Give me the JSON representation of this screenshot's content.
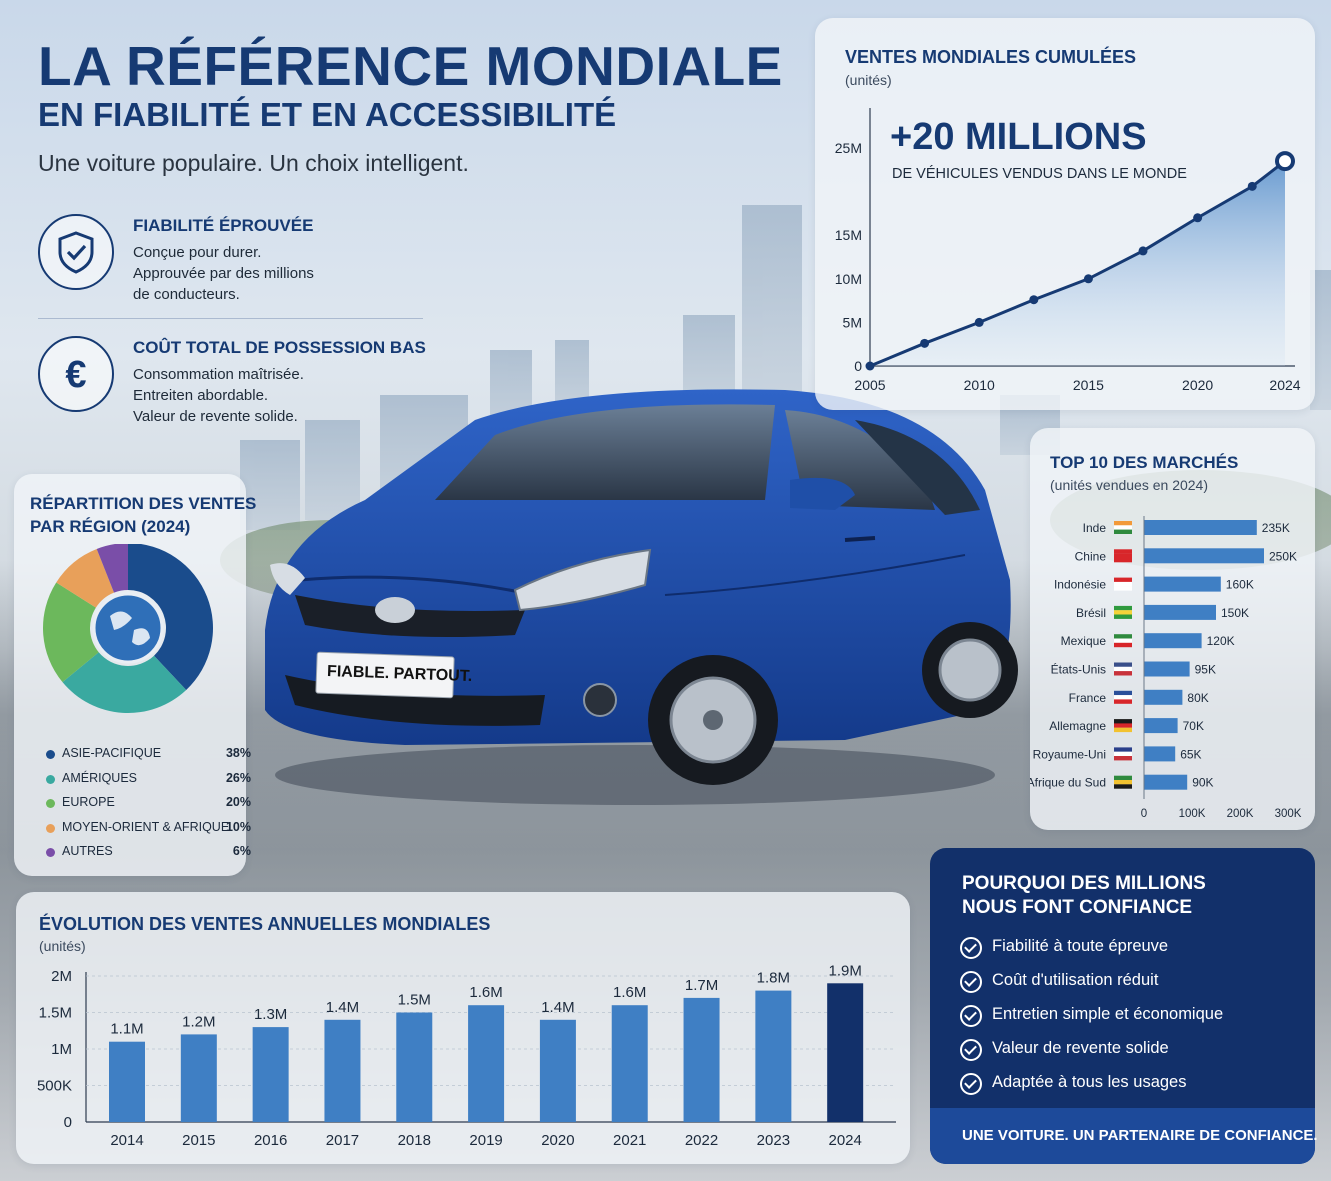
{
  "hero": {
    "title": "LA RÉFÉRENCE MONDIALE",
    "subtitle": "EN FIABILITÉ ET EN ACCESSIBILITÉ",
    "tagline": "Une voiture populaire. Un choix intelligent."
  },
  "features": [
    {
      "icon": "shield-check-icon",
      "title": "FIABILITÉ ÉPROUVÉE",
      "lines": [
        "Conçue pour durer.",
        "Approuvée par des millions",
        "de conducteurs."
      ]
    },
    {
      "icon": "euro-icon",
      "title": "COÛT TOTAL DE POSSESSION BAS",
      "lines": [
        "Consommation maîtrisée.",
        "Entreiten abordable.",
        "Valeur de revente solide."
      ]
    }
  ],
  "car_badge": "FIABLE. PARTOUT.",
  "colors": {
    "navy": "#163a73",
    "blue": "#3f7fc4",
    "dark_bar": "#12306a",
    "asia": "#1a4c8c",
    "americas": "#3aa9a0",
    "europe": "#6cb85c",
    "mea": "#e8a05a",
    "autres": "#7a4ea8"
  },
  "why": {
    "title_lines": [
      "POURQUOI DES MILLIONS",
      "NOUS FONT CONFIANCE"
    ],
    "items": [
      "Fiabilité à toute épreuve",
      "Coût d'utilisation réduit",
      "Entretien simple et économique",
      "Valeur de revente solide",
      "Adaptée à tous les usages"
    ],
    "footer": "UNE VOITURE. UN PARTENAIRE DE CONFIANCE."
  },
  "chart_data": [
    {
      "type": "area",
      "title": "VENTES MONDIALES CUMULÉES",
      "unit": "(unités)",
      "headline": "+20 MILLIONS",
      "headline_sub": "DE VÉHICULES VENDUS DANS LE MONDE",
      "x_ticks": [
        "2005",
        "2010",
        "2015",
        "2020",
        "2024"
      ],
      "y_ticks": [
        "0",
        "5M",
        "10M",
        "15M",
        "25M"
      ],
      "x": [
        2005,
        2007.5,
        2010,
        2012.5,
        2015,
        2017.5,
        2020,
        2022.5,
        2024
      ],
      "y": [
        0,
        2.6,
        5,
        7.6,
        10,
        13.2,
        17,
        20.6,
        23.5
      ],
      "xlim": [
        2005,
        2024
      ]
    },
    {
      "type": "pie",
      "title": "RÉPARTITION DES VENTES PAR RÉGION (2024)",
      "title_lines": [
        "RÉPARTITION DES VENTES",
        "PAR RÉGION (2024)"
      ],
      "icon": "globe-icon",
      "slices": [
        {
          "name": "ASIE-PACIFIQUE",
          "value": 38,
          "label": "38%",
          "color": "#1a4c8c"
        },
        {
          "name": "AMÉRIQUES",
          "value": 26,
          "label": "26%",
          "color": "#3aa9a0"
        },
        {
          "name": "EUROPE",
          "value": 20,
          "label": "20%",
          "color": "#6cb85c"
        },
        {
          "name": "MOYEN-ORIENT & AFRIQUE",
          "value": 10,
          "label": "10%",
          "color": "#e8a05a"
        },
        {
          "name": "AUTRES",
          "value": 6,
          "label": "6%",
          "color": "#7a4ea8"
        }
      ]
    },
    {
      "type": "bar",
      "orientation": "horizontal",
      "title": "TOP 10 DES MARCHÉS",
      "unit": "(unités vendues en 2024)",
      "categories": [
        "Inde",
        "Chine",
        "Indonésie",
        "Brésil",
        "Mexique",
        "États-Unis",
        "France",
        "Allemagne",
        "Royaume-Uni",
        "Afrique du Sud"
      ],
      "flags": [
        "flag-india-icon",
        "flag-china-icon",
        "flag-indonesia-icon",
        "flag-brazil-icon",
        "flag-mexico-icon",
        "flag-usa-icon",
        "flag-france-icon",
        "flag-germany-icon",
        "flag-uk-icon",
        "flag-south-africa-icon"
      ],
      "values": [
        235000,
        250000,
        160000,
        150000,
        120000,
        95000,
        80000,
        70000,
        65000,
        90000
      ],
      "labels": [
        "235K",
        "250K",
        "160K",
        "150K",
        "120K",
        "95K",
        "80K",
        "70K",
        "65K",
        "90K"
      ],
      "x_ticks": [
        "0",
        "100K",
        "200K",
        "300K"
      ],
      "xlim": [
        0,
        300000
      ]
    },
    {
      "type": "bar",
      "title": "ÉVOLUTION DES VENTES ANNUELLES MONDIALES",
      "unit": "(unités)",
      "categories": [
        "2014",
        "2015",
        "2016",
        "2017",
        "2018",
        "2019",
        "2020",
        "2021",
        "2022",
        "2023",
        "2024"
      ],
      "values": [
        1.1,
        1.2,
        1.3,
        1.4,
        1.5,
        1.6,
        1.4,
        1.6,
        1.7,
        1.8,
        1.9
      ],
      "labels": [
        "1.1M",
        "1.2M",
        "1.3M",
        "1.4M",
        "1.5M",
        "1.6M",
        "1.4M",
        "1.6M",
        "1.7M",
        "1.8M",
        "1.9M"
      ],
      "y_ticks": [
        "0",
        "500K",
        "1M",
        "1.5M",
        "2M"
      ],
      "ylim": [
        0,
        2
      ]
    }
  ]
}
